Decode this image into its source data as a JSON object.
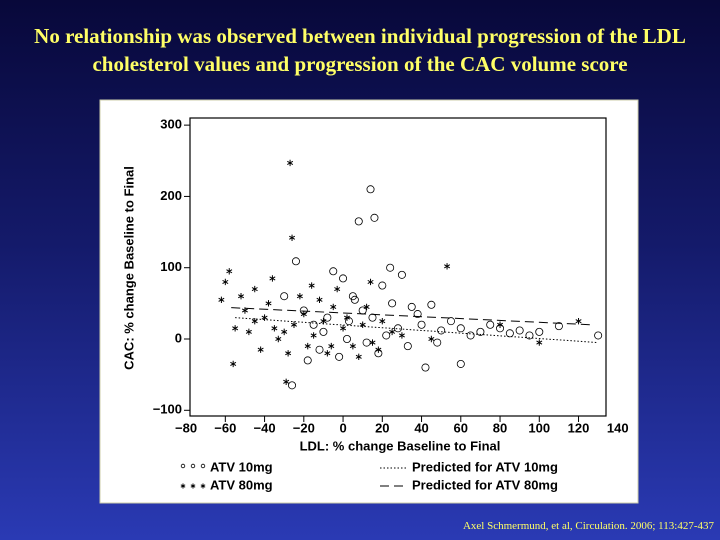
{
  "chart_data": {
    "type": "scatter",
    "title": "No relationship was observed between individual progression of the LDL cholesterol values and progression of the CAC volume score",
    "x_label": "LDL: % change Baseline to Final",
    "y_label": "CAC: % change Baseline to Final",
    "citation": "Axel Schmermund, et al, Circulation.  2006; 113:427-437",
    "xlim": [
      -78,
      134
    ],
    "ylim": [
      -108,
      310
    ],
    "xticks": [
      {
        "value": -80,
        "label": "−80"
      },
      {
        "value": -60,
        "label": "−60"
      },
      {
        "value": -40,
        "label": "−40"
      },
      {
        "value": -20,
        "label": "−20"
      },
      0,
      20,
      40,
      60,
      80,
      100,
      120,
      140
    ],
    "yticks": [
      {
        "value": -100,
        "label": "−100"
      },
      0,
      100,
      200,
      300
    ],
    "series": [
      {
        "name": "ATV 10mg",
        "marker": "circle",
        "color": "#000000",
        "x": [
          -24,
          -26,
          14,
          16,
          8,
          -5,
          0,
          5,
          10,
          15,
          20,
          25,
          30,
          35,
          40,
          45,
          50,
          55,
          60,
          65,
          70,
          75,
          80,
          85,
          90,
          95,
          100,
          110,
          130,
          -20,
          -15,
          -10,
          -12,
          -8,
          2,
          12,
          18,
          22,
          28,
          33,
          38,
          42,
          60,
          48,
          -30,
          -2,
          6,
          24,
          -18,
          3
        ],
        "values": [
          109,
          -65,
          210,
          170,
          165,
          95,
          85,
          60,
          40,
          30,
          75,
          50,
          90,
          45,
          20,
          48,
          12,
          25,
          15,
          5,
          10,
          20,
          15,
          8,
          12,
          5,
          10,
          18,
          5,
          40,
          20,
          10,
          -15,
          30,
          0,
          -5,
          -20,
          5,
          15,
          -10,
          35,
          -40,
          -35,
          -5,
          60,
          -25,
          55,
          100,
          -30,
          25
        ]
      },
      {
        "name": "ATV 80mg",
        "marker": "asterisk",
        "color": "#000000",
        "x": [
          -27,
          -26,
          -58,
          -60,
          53,
          -56,
          -50,
          -45,
          -40,
          -35,
          -30,
          -25,
          -20,
          -15,
          -10,
          -5,
          0,
          5,
          10,
          15,
          20,
          -48,
          -42,
          -38,
          -33,
          -28,
          -22,
          -18,
          -12,
          -8,
          -3,
          2,
          8,
          12,
          18,
          25,
          30,
          45,
          80,
          100,
          120,
          -52,
          -45,
          -36,
          -29,
          -16,
          -6,
          14,
          -62,
          -55
        ],
        "values": [
          247,
          142,
          95,
          80,
          102,
          -35,
          40,
          25,
          30,
          15,
          10,
          20,
          35,
          5,
          25,
          45,
          15,
          -10,
          20,
          -5,
          25,
          10,
          -15,
          50,
          0,
          -20,
          60,
          -10,
          55,
          -20,
          70,
          30,
          -25,
          45,
          -15,
          10,
          5,
          0,
          20,
          -5,
          25,
          60,
          70,
          85,
          -60,
          75,
          -10,
          80,
          55,
          15
        ]
      },
      {
        "name": "Predicted for ATV 10mg",
        "line_style": "dotted",
        "color": "#000000",
        "x": [
          -55,
          130
        ],
        "values": [
          30,
          -5
        ]
      },
      {
        "name": "Predicted for ATV 80mg",
        "line_style": "dashed",
        "color": "#000000",
        "x": [
          -57,
          126
        ],
        "values": [
          44,
          20
        ]
      }
    ]
  }
}
